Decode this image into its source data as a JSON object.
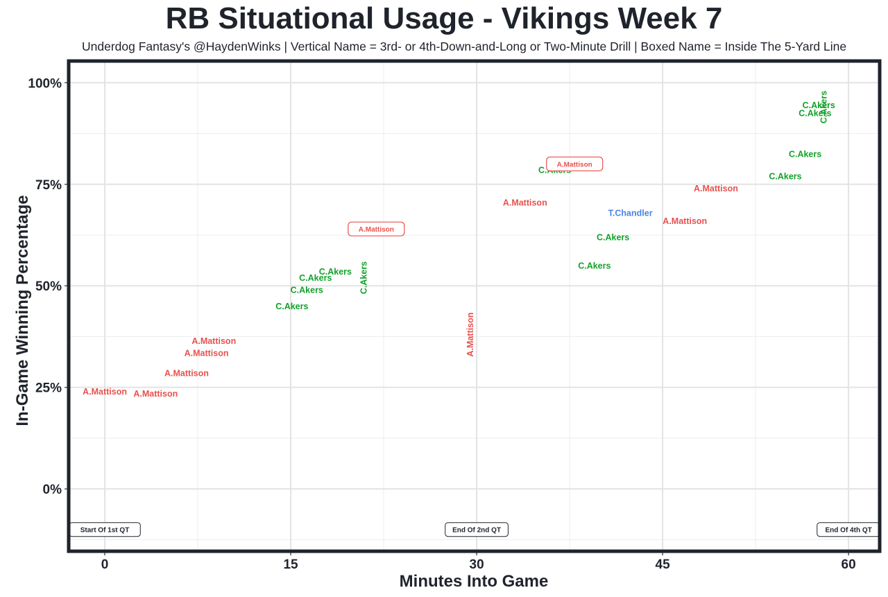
{
  "chart_data": {
    "type": "scatter",
    "title": "RB Situational Usage - Vikings Week 7",
    "subtitle": "Underdog Fantasy's @HaydenWinks | Vertical Name = 3rd- or 4th-Down-and-Long or Two-Minute Drill | Boxed Name = Inside The 5-Yard Line",
    "xlabel": "Minutes Into Game",
    "ylabel": "In-Game Winning Percentage",
    "xlim": [
      -2.8,
      62.4
    ],
    "ylim": [
      -0.15,
      1.05
    ],
    "x_ticks": [
      0,
      15,
      30,
      45,
      60
    ],
    "x_tick_labels": [
      "0",
      "15",
      "30",
      "45",
      "60"
    ],
    "y_ticks": [
      0,
      0.25,
      0.5,
      0.75,
      1.0
    ],
    "y_tick_labels": [
      "0%",
      "25%",
      "50%",
      "75%",
      "100%"
    ],
    "grid": true,
    "colors": {
      "A.Mattison": "#e8514e",
      "C.Akers": "#12a12a",
      "T.Chandler": "#4c83e8"
    },
    "points": [
      {
        "player": "A.Mattison",
        "x": 0.0,
        "y": 0.24,
        "style": "normal"
      },
      {
        "player": "A.Mattison",
        "x": 4.1,
        "y": 0.235,
        "style": "normal"
      },
      {
        "player": "A.Mattison",
        "x": 6.6,
        "y": 0.285,
        "style": "normal"
      },
      {
        "player": "A.Mattison",
        "x": 8.2,
        "y": 0.335,
        "style": "normal"
      },
      {
        "player": "A.Mattison",
        "x": 8.8,
        "y": 0.365,
        "style": "normal"
      },
      {
        "player": "C.Akers",
        "x": 15.1,
        "y": 0.45,
        "style": "normal"
      },
      {
        "player": "C.Akers",
        "x": 16.3,
        "y": 0.49,
        "style": "normal"
      },
      {
        "player": "C.Akers",
        "x": 17.0,
        "y": 0.52,
        "style": "normal"
      },
      {
        "player": "C.Akers",
        "x": 18.6,
        "y": 0.535,
        "style": "normal"
      },
      {
        "player": "C.Akers",
        "x": 20.9,
        "y": 0.52,
        "style": "vertical"
      },
      {
        "player": "A.Mattison",
        "x": 21.9,
        "y": 0.64,
        "style": "boxed"
      },
      {
        "player": "A.Mattison",
        "x": 29.5,
        "y": 0.38,
        "style": "vertical"
      },
      {
        "player": "A.Mattison",
        "x": 33.9,
        "y": 0.705,
        "style": "normal"
      },
      {
        "player": "C.Akers",
        "x": 36.3,
        "y": 0.785,
        "style": "normal"
      },
      {
        "player": "A.Mattison",
        "x": 37.9,
        "y": 0.8,
        "style": "boxed"
      },
      {
        "player": "C.Akers",
        "x": 39.5,
        "y": 0.55,
        "style": "normal"
      },
      {
        "player": "C.Akers",
        "x": 41.0,
        "y": 0.62,
        "style": "normal"
      },
      {
        "player": "T.Chandler",
        "x": 42.4,
        "y": 0.68,
        "style": "normal"
      },
      {
        "player": "A.Mattison",
        "x": 46.8,
        "y": 0.66,
        "style": "normal"
      },
      {
        "player": "A.Mattison",
        "x": 49.3,
        "y": 0.74,
        "style": "normal"
      },
      {
        "player": "C.Akers",
        "x": 54.9,
        "y": 0.77,
        "style": "normal"
      },
      {
        "player": "C.Akers",
        "x": 56.5,
        "y": 0.825,
        "style": "normal"
      },
      {
        "player": "C.Akers",
        "x": 57.3,
        "y": 0.925,
        "style": "normal"
      },
      {
        "player": "C.Akers",
        "x": 57.6,
        "y": 0.945,
        "style": "normal"
      },
      {
        "player": "C.Akers",
        "x": 58.0,
        "y": 0.94,
        "style": "vertical"
      }
    ],
    "annotations": [
      {
        "text": "Start Of 1st QT",
        "x": 0.0,
        "y": -0.1
      },
      {
        "text": "End Of 2nd QT",
        "x": 30.0,
        "y": -0.1
      },
      {
        "text": "End Of 4th QT",
        "x": 60.0,
        "y": -0.1
      }
    ]
  }
}
